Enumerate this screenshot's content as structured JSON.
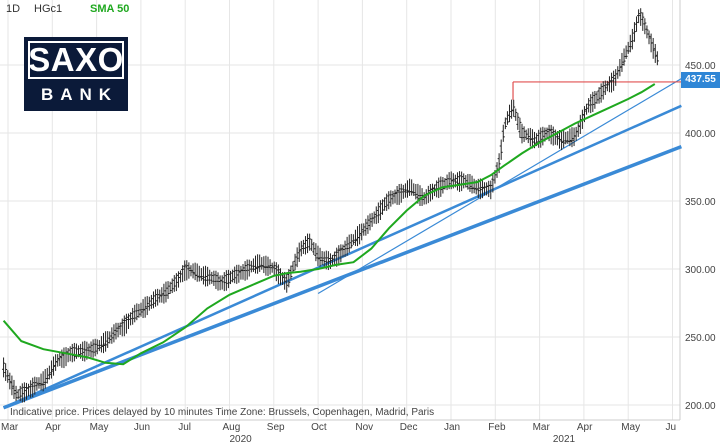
{
  "header": {
    "interval": "1D",
    "symbol": "HGc1",
    "indicator": "SMA 50"
  },
  "logo": {
    "line1": "SAXO",
    "line2": "BANK"
  },
  "footer_note": "Indicative price. Prices delayed by 10 minutes   Time Zone: Brussels, Copenhagen, Madrid, Paris",
  "colors": {
    "candles": "#222222",
    "sma": "#1fa81f",
    "trend": "#3a8ad6",
    "level": "#e05050",
    "price_box": "#2f86d6",
    "grid": "#e6e6e6"
  },
  "chart_data": {
    "type": "line",
    "title": "",
    "xlabel": "",
    "ylabel": "",
    "ylim": [
      193,
      500
    ],
    "y_ticks": [
      "450.00",
      "400.00",
      "350.00",
      "300.00",
      "250.00",
      "200.00"
    ],
    "y_tick_values": [
      450,
      400,
      350,
      300,
      250,
      200
    ],
    "x_ticks": [
      "Mar",
      "Apr",
      "May",
      "Jun",
      "Jul",
      "Aug",
      "Sep",
      "Oct",
      "Nov",
      "Dec",
      "Jan",
      "Feb",
      "Mar",
      "Apr",
      "May",
      "Ju"
    ],
    "x_tick_months": [
      0,
      1,
      2,
      3,
      4,
      5,
      6,
      7,
      8,
      9,
      10,
      11,
      12,
      13,
      14,
      15
    ],
    "year_labels": [
      "2020",
      "2021"
    ],
    "year_label_months": [
      5,
      12.3
    ],
    "last_price": "437.55",
    "last_price_value": 437.55,
    "series": [
      {
        "name": "HGc1",
        "kind": "price",
        "x_month": [
          -0.1,
          0.2,
          0.5,
          0.8,
          1.1,
          1.4,
          1.7,
          2.0,
          2.3,
          2.6,
          2.9,
          3.2,
          3.5,
          3.8,
          4.0,
          4.2,
          4.5,
          4.8,
          5.1,
          5.4,
          5.7,
          6.0,
          6.3,
          6.6,
          6.8,
          7.0,
          7.3,
          7.6,
          7.9,
          8.2,
          8.5,
          8.8,
          9.1,
          9.4,
          9.7,
          10.0,
          10.3,
          10.6,
          10.9,
          11.1,
          11.2,
          11.4,
          11.6,
          11.9,
          12.2,
          12.5,
          12.8,
          13.1,
          13.4,
          13.7,
          13.9,
          14.1,
          14.25,
          14.35,
          14.5,
          14.7
        ],
        "values": [
          228,
          207,
          212,
          218,
          232,
          238,
          240,
          242,
          250,
          258,
          268,
          275,
          282,
          290,
          300,
          298,
          295,
          290,
          295,
          300,
          305,
          300,
          290,
          315,
          320,
          310,
          305,
          315,
          325,
          335,
          348,
          355,
          360,
          352,
          360,
          365,
          365,
          360,
          358,
          380,
          405,
          420,
          400,
          395,
          400,
          395,
          398,
          420,
          430,
          440,
          455,
          470,
          488,
          480,
          468,
          452
        ]
      },
      {
        "name": "SMA 50",
        "kind": "sma",
        "x_month": [
          -0.1,
          0.3,
          0.8,
          1.3,
          1.8,
          2.2,
          2.6,
          3.0,
          3.5,
          4.0,
          4.5,
          5.0,
          5.5,
          6.0,
          6.3,
          6.6,
          7.0,
          7.4,
          7.8,
          8.2,
          8.6,
          9.0,
          9.4,
          9.8,
          10.2,
          10.6,
          10.9,
          11.2,
          11.6,
          12.0,
          12.4,
          12.8,
          13.2,
          13.6,
          14.0,
          14.3,
          14.6
        ],
        "values": [
          262,
          247,
          241,
          238,
          235,
          231,
          230,
          238,
          246,
          257,
          271,
          281,
          288,
          295,
          297,
          298,
          300,
          303,
          305,
          315,
          330,
          343,
          354,
          360,
          362,
          364,
          369,
          376,
          385,
          393,
          400,
          407,
          413,
          419,
          425,
          430,
          436
        ]
      }
    ],
    "trend_lines": [
      {
        "from": [
          -0.1,
          198
        ],
        "to": [
          15.2,
          390
        ]
      },
      {
        "from": [
          -0.1,
          198
        ],
        "to": [
          15.2,
          420
        ]
      },
      {
        "from": [
          7.0,
          282
        ],
        "to": [
          15.2,
          440
        ]
      }
    ],
    "level_line": {
      "value": 437.55,
      "from_month": 11.4,
      "to_month": 15.2
    }
  }
}
